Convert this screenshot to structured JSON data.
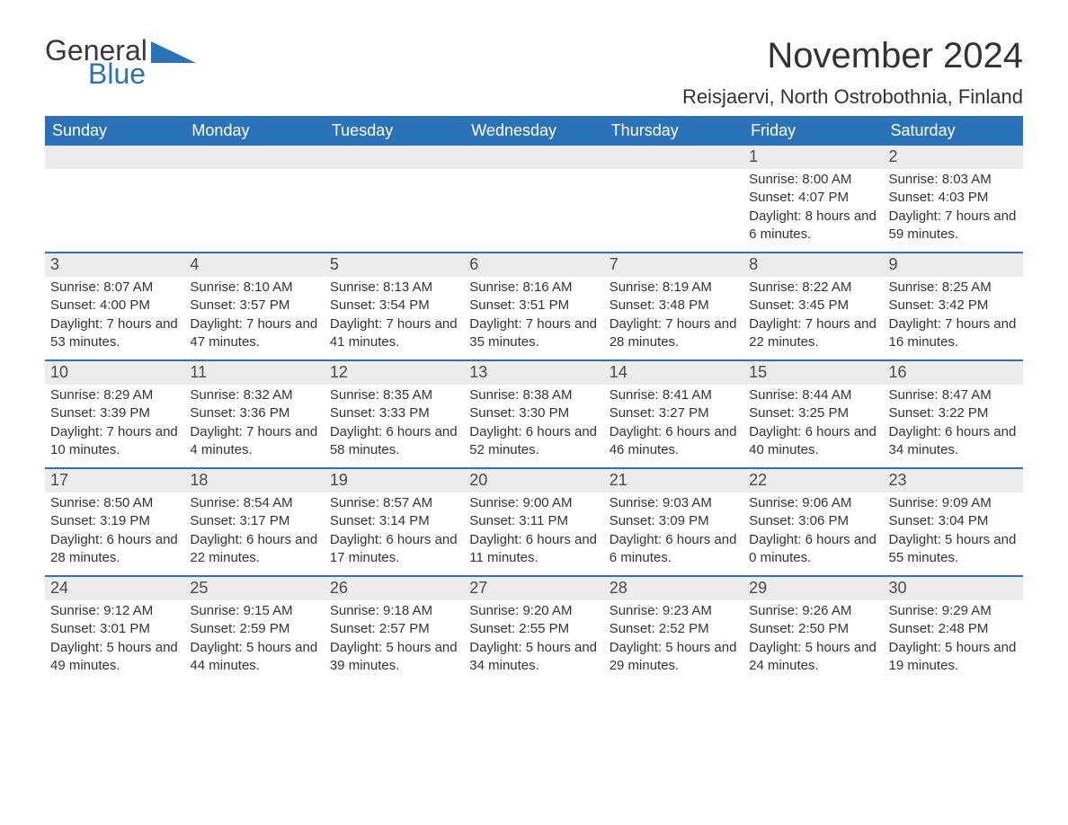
{
  "brand": {
    "word1": "General",
    "word2": "Blue",
    "word1_color": "#39393a",
    "word2_color": "#2a73b8",
    "triangle_color": "#2a73b8"
  },
  "title": "November 2024",
  "location": "Reisjaervi, North Ostrobothnia, Finland",
  "colors": {
    "header_bg": "#2a73b8",
    "header_text": "#ffffff",
    "daynum_bg": "#ececec",
    "week_divider": "#2a73b8",
    "text": "#333333",
    "background": "#ffffff"
  },
  "weekdays": [
    "Sunday",
    "Monday",
    "Tuesday",
    "Wednesday",
    "Thursday",
    "Friday",
    "Saturday"
  ],
  "weeks": [
    [
      {
        "day": "",
        "sunrise": "",
        "sunset": "",
        "daylight": ""
      },
      {
        "day": "",
        "sunrise": "",
        "sunset": "",
        "daylight": ""
      },
      {
        "day": "",
        "sunrise": "",
        "sunset": "",
        "daylight": ""
      },
      {
        "day": "",
        "sunrise": "",
        "sunset": "",
        "daylight": ""
      },
      {
        "day": "",
        "sunrise": "",
        "sunset": "",
        "daylight": ""
      },
      {
        "day": "1",
        "sunrise": "Sunrise: 8:00 AM",
        "sunset": "Sunset: 4:07 PM",
        "daylight": "Daylight: 8 hours and 6 minutes."
      },
      {
        "day": "2",
        "sunrise": "Sunrise: 8:03 AM",
        "sunset": "Sunset: 4:03 PM",
        "daylight": "Daylight: 7 hours and 59 minutes."
      }
    ],
    [
      {
        "day": "3",
        "sunrise": "Sunrise: 8:07 AM",
        "sunset": "Sunset: 4:00 PM",
        "daylight": "Daylight: 7 hours and 53 minutes."
      },
      {
        "day": "4",
        "sunrise": "Sunrise: 8:10 AM",
        "sunset": "Sunset: 3:57 PM",
        "daylight": "Daylight: 7 hours and 47 minutes."
      },
      {
        "day": "5",
        "sunrise": "Sunrise: 8:13 AM",
        "sunset": "Sunset: 3:54 PM",
        "daylight": "Daylight: 7 hours and 41 minutes."
      },
      {
        "day": "6",
        "sunrise": "Sunrise: 8:16 AM",
        "sunset": "Sunset: 3:51 PM",
        "daylight": "Daylight: 7 hours and 35 minutes."
      },
      {
        "day": "7",
        "sunrise": "Sunrise: 8:19 AM",
        "sunset": "Sunset: 3:48 PM",
        "daylight": "Daylight: 7 hours and 28 minutes."
      },
      {
        "day": "8",
        "sunrise": "Sunrise: 8:22 AM",
        "sunset": "Sunset: 3:45 PM",
        "daylight": "Daylight: 7 hours and 22 minutes."
      },
      {
        "day": "9",
        "sunrise": "Sunrise: 8:25 AM",
        "sunset": "Sunset: 3:42 PM",
        "daylight": "Daylight: 7 hours and 16 minutes."
      }
    ],
    [
      {
        "day": "10",
        "sunrise": "Sunrise: 8:29 AM",
        "sunset": "Sunset: 3:39 PM",
        "daylight": "Daylight: 7 hours and 10 minutes."
      },
      {
        "day": "11",
        "sunrise": "Sunrise: 8:32 AM",
        "sunset": "Sunset: 3:36 PM",
        "daylight": "Daylight: 7 hours and 4 minutes."
      },
      {
        "day": "12",
        "sunrise": "Sunrise: 8:35 AM",
        "sunset": "Sunset: 3:33 PM",
        "daylight": "Daylight: 6 hours and 58 minutes."
      },
      {
        "day": "13",
        "sunrise": "Sunrise: 8:38 AM",
        "sunset": "Sunset: 3:30 PM",
        "daylight": "Daylight: 6 hours and 52 minutes."
      },
      {
        "day": "14",
        "sunrise": "Sunrise: 8:41 AM",
        "sunset": "Sunset: 3:27 PM",
        "daylight": "Daylight: 6 hours and 46 minutes."
      },
      {
        "day": "15",
        "sunrise": "Sunrise: 8:44 AM",
        "sunset": "Sunset: 3:25 PM",
        "daylight": "Daylight: 6 hours and 40 minutes."
      },
      {
        "day": "16",
        "sunrise": "Sunrise: 8:47 AM",
        "sunset": "Sunset: 3:22 PM",
        "daylight": "Daylight: 6 hours and 34 minutes."
      }
    ],
    [
      {
        "day": "17",
        "sunrise": "Sunrise: 8:50 AM",
        "sunset": "Sunset: 3:19 PM",
        "daylight": "Daylight: 6 hours and 28 minutes."
      },
      {
        "day": "18",
        "sunrise": "Sunrise: 8:54 AM",
        "sunset": "Sunset: 3:17 PM",
        "daylight": "Daylight: 6 hours and 22 minutes."
      },
      {
        "day": "19",
        "sunrise": "Sunrise: 8:57 AM",
        "sunset": "Sunset: 3:14 PM",
        "daylight": "Daylight: 6 hours and 17 minutes."
      },
      {
        "day": "20",
        "sunrise": "Sunrise: 9:00 AM",
        "sunset": "Sunset: 3:11 PM",
        "daylight": "Daylight: 6 hours and 11 minutes."
      },
      {
        "day": "21",
        "sunrise": "Sunrise: 9:03 AM",
        "sunset": "Sunset: 3:09 PM",
        "daylight": "Daylight: 6 hours and 6 minutes."
      },
      {
        "day": "22",
        "sunrise": "Sunrise: 9:06 AM",
        "sunset": "Sunset: 3:06 PM",
        "daylight": "Daylight: 6 hours and 0 minutes."
      },
      {
        "day": "23",
        "sunrise": "Sunrise: 9:09 AM",
        "sunset": "Sunset: 3:04 PM",
        "daylight": "Daylight: 5 hours and 55 minutes."
      }
    ],
    [
      {
        "day": "24",
        "sunrise": "Sunrise: 9:12 AM",
        "sunset": "Sunset: 3:01 PM",
        "daylight": "Daylight: 5 hours and 49 minutes."
      },
      {
        "day": "25",
        "sunrise": "Sunrise: 9:15 AM",
        "sunset": "Sunset: 2:59 PM",
        "daylight": "Daylight: 5 hours and 44 minutes."
      },
      {
        "day": "26",
        "sunrise": "Sunrise: 9:18 AM",
        "sunset": "Sunset: 2:57 PM",
        "daylight": "Daylight: 5 hours and 39 minutes."
      },
      {
        "day": "27",
        "sunrise": "Sunrise: 9:20 AM",
        "sunset": "Sunset: 2:55 PM",
        "daylight": "Daylight: 5 hours and 34 minutes."
      },
      {
        "day": "28",
        "sunrise": "Sunrise: 9:23 AM",
        "sunset": "Sunset: 2:52 PM",
        "daylight": "Daylight: 5 hours and 29 minutes."
      },
      {
        "day": "29",
        "sunrise": "Sunrise: 9:26 AM",
        "sunset": "Sunset: 2:50 PM",
        "daylight": "Daylight: 5 hours and 24 minutes."
      },
      {
        "day": "30",
        "sunrise": "Sunrise: 9:29 AM",
        "sunset": "Sunset: 2:48 PM",
        "daylight": "Daylight: 5 hours and 19 minutes."
      }
    ]
  ]
}
